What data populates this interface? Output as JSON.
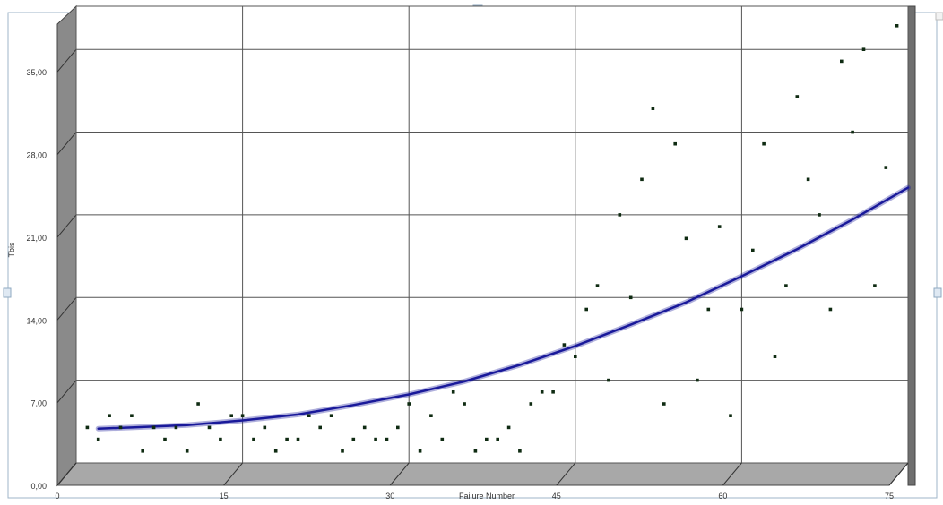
{
  "chart_data": {
    "type": "scatter",
    "title": "",
    "xlabel": "Failure Number",
    "ylabel": "Tbis",
    "xlim": [
      0,
      75
    ],
    "ylim": [
      0,
      36
    ],
    "grid": true,
    "x_ticks": [
      {
        "value": 0,
        "label": "0"
      },
      {
        "value": 15,
        "label": "15"
      },
      {
        "value": 30,
        "label": "30"
      },
      {
        "value": 45,
        "label": "45"
      },
      {
        "value": 60,
        "label": "60"
      },
      {
        "value": 75,
        "label": "75"
      }
    ],
    "y_ticks": [
      {
        "value": 0,
        "label": "0,00"
      },
      {
        "value": 7,
        "label": "7,00"
      },
      {
        "value": 14,
        "label": "14,00"
      },
      {
        "value": 21,
        "label": "21,00"
      },
      {
        "value": 28,
        "label": "28,00"
      },
      {
        "value": 35,
        "label": "35,00"
      }
    ],
    "colors": {
      "points": "#0f2b12",
      "curve": "#1a1a9a",
      "grid": "#555555",
      "wall": "#8a8a8a",
      "floor": "#a8a8a8"
    },
    "series": [
      {
        "kind": "points",
        "x": [
          1,
          2,
          3,
          4,
          5,
          6,
          7,
          8,
          9,
          10,
          11,
          12,
          13,
          14,
          15,
          16,
          17,
          18,
          19,
          20,
          21,
          22,
          23,
          24,
          25,
          26,
          27,
          28,
          29,
          30,
          31,
          32,
          33,
          34,
          35,
          36,
          37,
          38,
          39,
          40,
          41,
          42,
          43,
          44,
          45,
          46,
          47,
          48,
          49,
          50,
          51,
          52,
          53,
          54,
          55,
          56,
          57,
          58,
          59,
          60,
          61,
          62,
          63,
          64,
          65,
          66,
          67,
          68,
          69,
          70,
          71,
          72,
          73,
          74
        ],
        "y": [
          3.0,
          2.0,
          4.0,
          3.0,
          4.0,
          1.0,
          3.0,
          2.0,
          3.0,
          1.0,
          5.0,
          3.0,
          2.0,
          4.0,
          4.0,
          2.0,
          3.0,
          1.0,
          2.0,
          2.0,
          4.0,
          3.0,
          4.0,
          1.0,
          2.0,
          3.0,
          2.0,
          2.0,
          3.0,
          5.0,
          1.0,
          4.0,
          2.0,
          6.0,
          5.0,
          1.0,
          2.0,
          2.0,
          3.0,
          1.0,
          5.0,
          6.0,
          6.0,
          10.0,
          9.0,
          13.0,
          15.0,
          7.0,
          21.0,
          14.0,
          24.0,
          30.0,
          5.0,
          27.0,
          19.0,
          7.0,
          13.0,
          20.0,
          4.0,
          13.0,
          18.0,
          27.0,
          9.0,
          15.0,
          31.0,
          24.0,
          21.0,
          13.0,
          34.0,
          28.0,
          35.0,
          15.0,
          25.0,
          37.0
        ]
      },
      {
        "kind": "trend",
        "x": [
          2,
          5,
          10,
          15,
          20,
          25,
          30,
          35,
          40,
          45,
          50,
          55,
          60,
          65,
          70,
          75
        ],
        "y": [
          2.9,
          3.0,
          3.2,
          3.6,
          4.1,
          4.9,
          5.8,
          6.9,
          8.3,
          9.9,
          11.7,
          13.6,
          15.8,
          18.1,
          20.6,
          23.3
        ]
      }
    ]
  }
}
